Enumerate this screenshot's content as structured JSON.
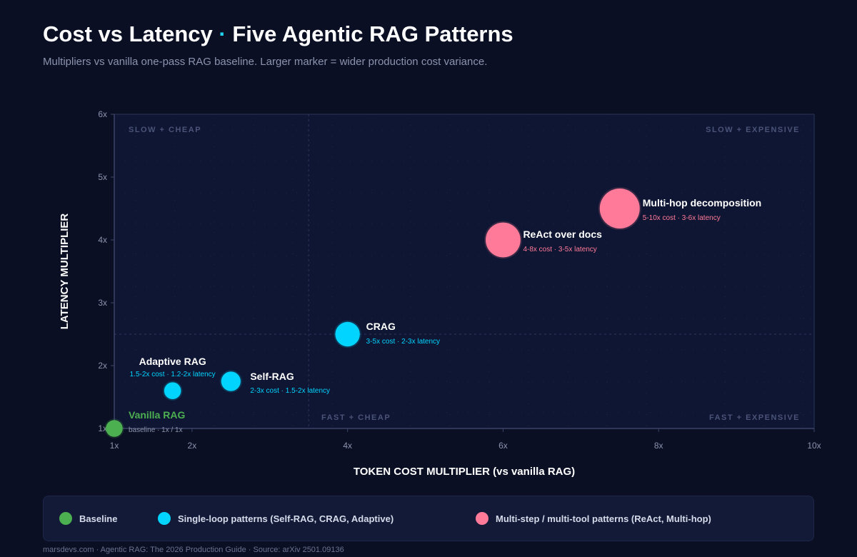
{
  "header": {
    "title_main": "Cost vs Latency",
    "title_sep": "·",
    "title_rest": "Five Agentic RAG Patterns",
    "subtitle": "Multipliers vs vanilla one-pass RAG baseline. Larger marker = wider production cost variance."
  },
  "colors": {
    "background": "#0a0f24",
    "plot_background": "#0f1633",
    "baseline": "#4caf50",
    "single_loop": "#00d4ff",
    "multi_step": "#ff7a99",
    "axis": "#3a4468",
    "text_muted": "#8b93ad"
  },
  "chart_data": {
    "type": "scatter",
    "xlabel": "TOKEN COST MULTIPLIER (vs vanilla RAG)",
    "ylabel": "LATENCY MULTIPLIER",
    "xlim": [
      1,
      10
    ],
    "ylim": [
      1,
      6
    ],
    "xticks": [
      1,
      2,
      4,
      6,
      8,
      10
    ],
    "xtick_labels": [
      "1x",
      "2x",
      "4x",
      "6x",
      "8x",
      "10x"
    ],
    "yticks": [
      1,
      2,
      3,
      4,
      5,
      6
    ],
    "ytick_labels": [
      "1x",
      "2x",
      "3x",
      "4x",
      "5x",
      "6x"
    ],
    "quadrant_split": {
      "x": 3.5,
      "y": 2.5
    },
    "quadrant_labels": {
      "top_left": "SLOW + CHEAP",
      "top_right": "SLOW + EXPENSIVE",
      "bottom_left": "FAST + CHEAP",
      "bottom_right": "FAST + EXPENSIVE"
    },
    "grid": true,
    "points": [
      {
        "name": "Vanilla RAG",
        "detail": "baseline · 1x / 1x",
        "x": 1,
        "y": 1,
        "group": "baseline",
        "variance": 0.5
      },
      {
        "name": "Adaptive RAG",
        "detail": "1.5-2x cost · 1.2-2x latency",
        "x": 1.75,
        "y": 1.6,
        "group": "single",
        "variance": 0.5
      },
      {
        "name": "Self-RAG",
        "detail": "2-3x cost · 1.5-2x latency",
        "x": 2.5,
        "y": 1.75,
        "group": "single",
        "variance": 1
      },
      {
        "name": "CRAG",
        "detail": "3-5x cost · 2-3x latency",
        "x": 4,
        "y": 2.5,
        "group": "single",
        "variance": 2
      },
      {
        "name": "ReAct over docs",
        "detail": "4-8x cost · 3-5x latency",
        "x": 6,
        "y": 4,
        "group": "multi",
        "variance": 4
      },
      {
        "name": "Multi-hop decomposition",
        "detail": "5-10x cost · 3-6x latency",
        "x": 7.5,
        "y": 4.5,
        "group": "multi",
        "variance": 5
      }
    ]
  },
  "legend": [
    {
      "label": "Baseline",
      "group": "baseline"
    },
    {
      "label": "Single-loop patterns (Self-RAG, CRAG, Adaptive)",
      "group": "single"
    },
    {
      "label": "Multi-step / multi-tool patterns (ReAct, Multi-hop)",
      "group": "multi"
    }
  ],
  "footer": "marsdevs.com · Agentic RAG: The 2026 Production Guide · Source: arXiv 2501.09136"
}
